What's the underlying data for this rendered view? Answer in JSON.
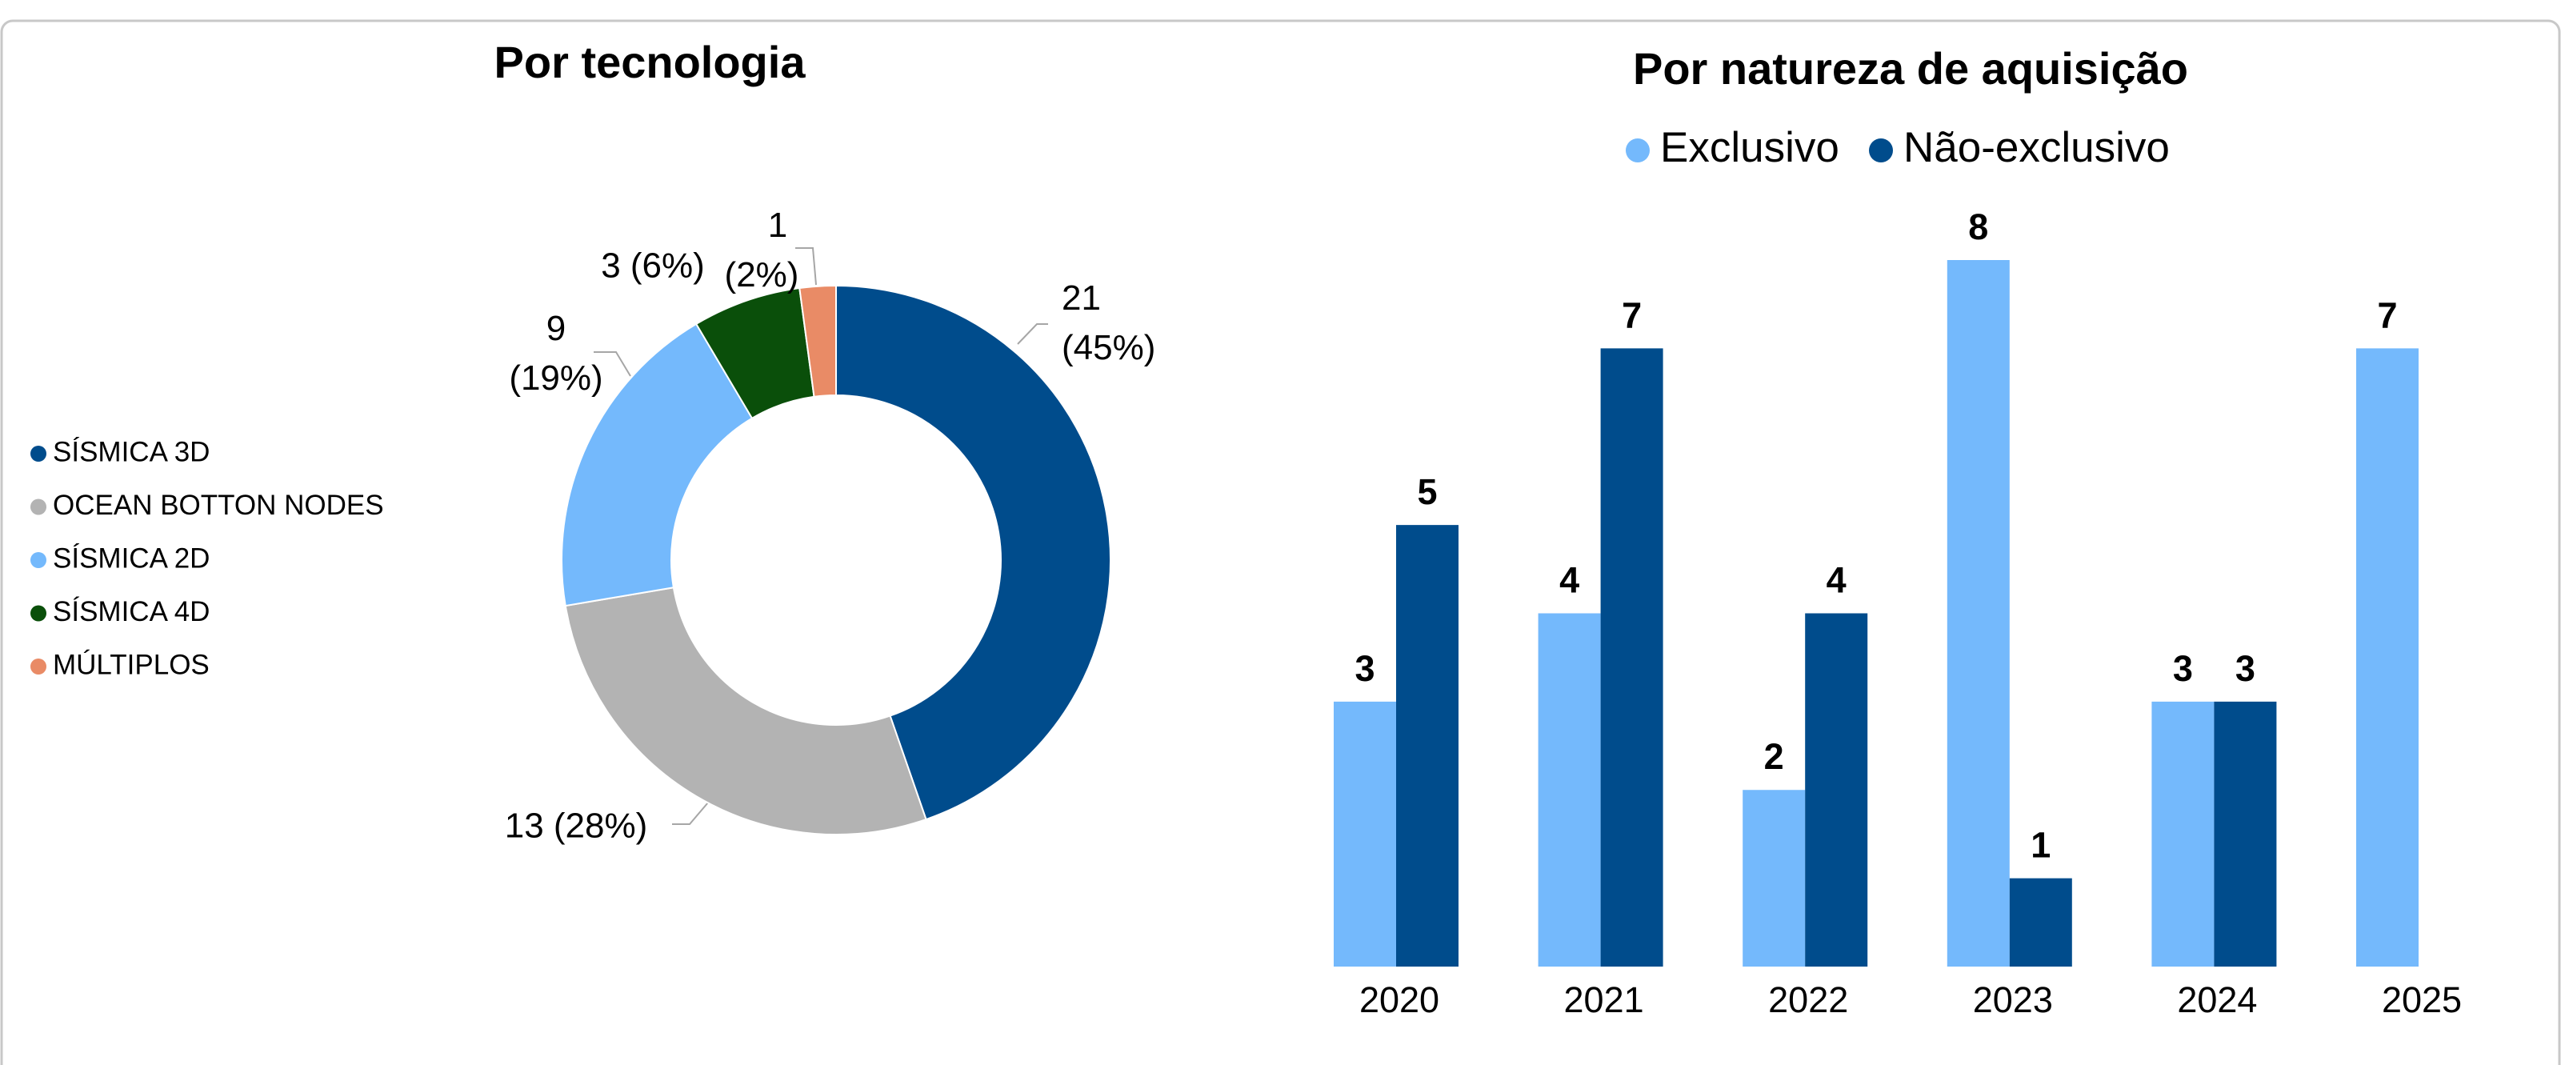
{
  "chart_data": [
    {
      "type": "donut",
      "title": "Por tecnologia",
      "categories": [
        "SÍSMICA 3D",
        "OCEAN BOTTON NODES",
        "SÍSMICA 2D",
        "SÍSMICA 4D",
        "MÚLTIPLOS"
      ],
      "values": [
        21,
        13,
        9,
        3,
        1
      ],
      "value_labels": [
        "21 (45%)",
        "13 (28%)",
        "9 (19%)",
        "3 (6%)",
        "1 (2%)"
      ],
      "colors": [
        "#004c8c",
        "#b3b3b3",
        "#74b9fc",
        "#0a4f0a",
        "#e98b66"
      ],
      "legend": "left"
    },
    {
      "type": "bar",
      "title": "Por natureza de aquisição",
      "categories": [
        "2020",
        "2021",
        "2022",
        "2023",
        "2024",
        "2025"
      ],
      "series": [
        {
          "name": "Exclusivo",
          "color": "#74b9fc",
          "values": [
            3,
            4,
            2,
            8,
            3,
            7
          ]
        },
        {
          "name": "Não-exclusivo",
          "color": "#004c8c",
          "values": [
            5,
            7,
            4,
            1,
            3,
            null
          ]
        }
      ],
      "legend": "top"
    }
  ]
}
